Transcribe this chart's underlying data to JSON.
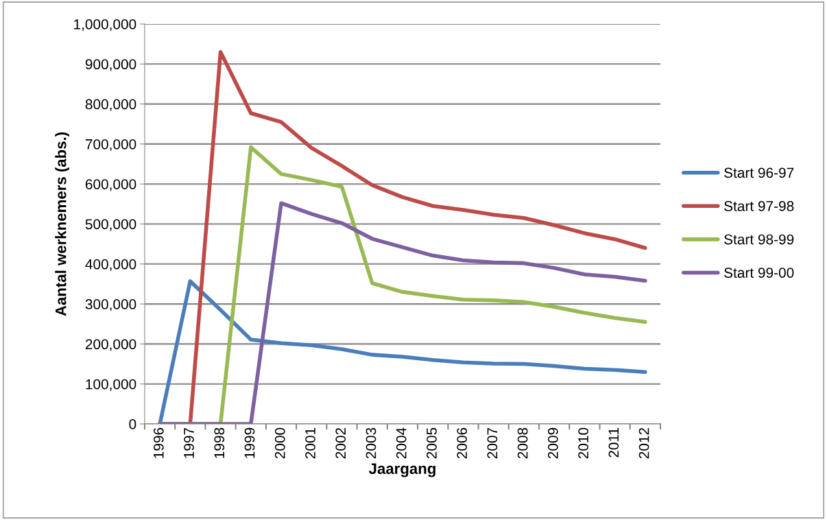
{
  "chart_data": {
    "type": "line",
    "xlabel": "Jaargang",
    "ylabel": "Aantal werknemers (abs.)",
    "categories": [
      "1996",
      "1997",
      "1998",
      "1999",
      "2000",
      "2001",
      "2002",
      "2003",
      "2004",
      "2005",
      "2006",
      "2007",
      "2008",
      "2009",
      "2010",
      "2011",
      "2012"
    ],
    "series": [
      {
        "name": "Start 96-97",
        "color": "#4a7ebb",
        "values": [
          0,
          357000,
          285000,
          211000,
          202000,
          197000,
          187000,
          173000,
          168000,
          160000,
          154000,
          151000,
          150000,
          145000,
          138000,
          135000,
          130000
        ]
      },
      {
        "name": "Start 97-98",
        "color": "#be4b48",
        "values": [
          0,
          0,
          930000,
          777000,
          755000,
          690000,
          645000,
          597000,
          567000,
          545000,
          535000,
          523000,
          515000,
          497000,
          477000,
          462000,
          440000
        ]
      },
      {
        "name": "Start 98-99",
        "color": "#98b954",
        "values": [
          0,
          0,
          0,
          692000,
          625000,
          610000,
          593000,
          352000,
          330000,
          320000,
          311000,
          309000,
          305000,
          293000,
          278000,
          265000,
          255000
        ]
      },
      {
        "name": "Start 99-00",
        "color": "#7d60a0",
        "values": [
          0,
          0,
          0,
          0,
          552000,
          525000,
          502000,
          463000,
          442000,
          421000,
          409000,
          404000,
          402000,
          390000,
          374000,
          368000,
          358000
        ]
      }
    ],
    "ylim": [
      0,
      1000000
    ],
    "yticks": [
      {
        "value": 0,
        "label": "0"
      },
      {
        "value": 100000,
        "label": "100,000"
      },
      {
        "value": 200000,
        "label": "200,000"
      },
      {
        "value": 300000,
        "label": "300,000"
      },
      {
        "value": 400000,
        "label": "400,000"
      },
      {
        "value": 500000,
        "label": "500,000"
      },
      {
        "value": 600000,
        "label": "600,000"
      },
      {
        "value": 700000,
        "label": "700,000"
      },
      {
        "value": 800000,
        "label": "800,000"
      },
      {
        "value": 900000,
        "label": "900,000"
      },
      {
        "value": 1000000,
        "label": "1,000,000"
      }
    ],
    "grid": "y",
    "legend": "right",
    "marker": "none",
    "line_style": "solid"
  }
}
